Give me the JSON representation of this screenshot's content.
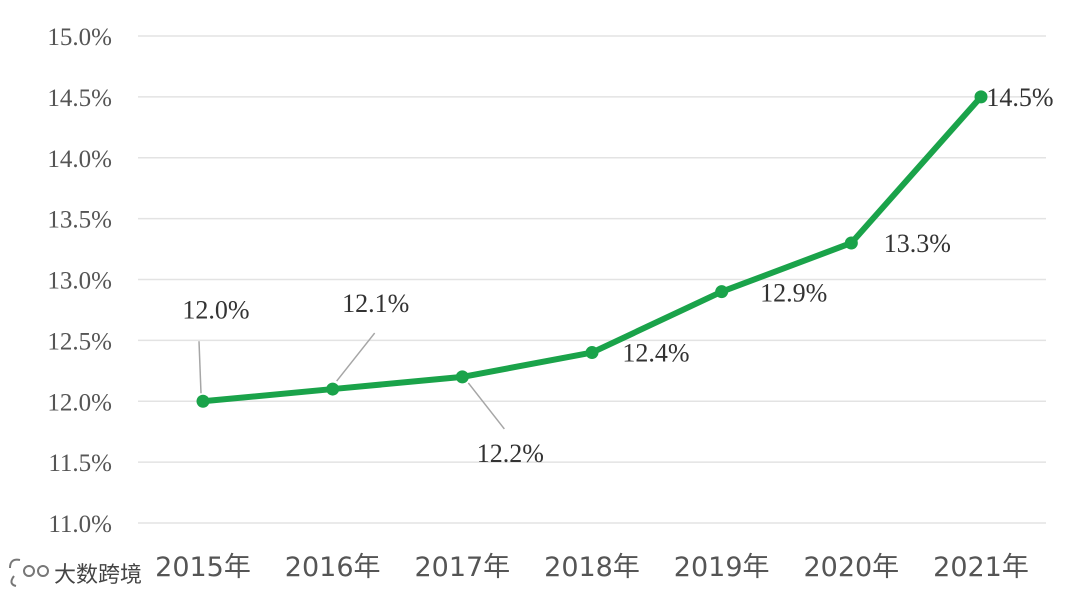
{
  "chart_data": {
    "type": "line",
    "title": "",
    "xlabel": "",
    "ylabel": "",
    "categories": [
      "2015年",
      "2016年",
      "2017年",
      "2018年",
      "2019年",
      "2020年",
      "2021年"
    ],
    "series": [
      {
        "values": [
          12.0,
          12.1,
          12.2,
          12.4,
          12.9,
          13.3,
          14.5
        ],
        "color": "#1aa34a"
      }
    ],
    "data_labels": [
      "12.0%",
      "12.1%",
      "12.2%",
      "12.4%",
      "12.9%",
      "13.3%",
      "14.5%"
    ],
    "ylim": [
      11.0,
      15.0
    ],
    "ytick_step": 0.5,
    "ytick_labels": [
      "11.0%",
      "11.5%",
      "12.0%",
      "12.5%",
      "13.0%",
      "13.5%",
      "14.0%",
      "14.5%",
      "15.0%"
    ],
    "grid": true,
    "legend": "none"
  },
  "watermark": {
    "text": "大数跨境",
    "icon": "brand-logo-icon"
  }
}
